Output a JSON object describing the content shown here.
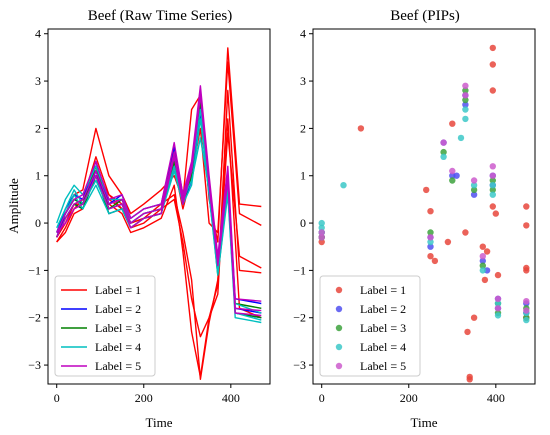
{
  "chart_data": [
    {
      "type": "line",
      "title": "Beef (Raw Time Series)",
      "xlabel": "Time",
      "ylabel": "Amplitude",
      "xlim": [
        -20,
        490
      ],
      "ylim": [
        -3.4,
        4.1
      ],
      "xticks": [
        0,
        200,
        400
      ],
      "yticks": [
        -3,
        -2,
        -1,
        0,
        1,
        2,
        3,
        4
      ],
      "grid": false,
      "legend_position": "lower-left",
      "series": [
        {
          "name": "Label = 1",
          "color": "#ff0000",
          "x": [
            0,
            20,
            40,
            60,
            90,
            120,
            150,
            170,
            200,
            240,
            270,
            290,
            310,
            330,
            350,
            370,
            393,
            420,
            470
          ],
          "curves": [
            [
              -0.3,
              0.2,
              0.6,
              0.7,
              2.0,
              1.0,
              0.6,
              0.2,
              0.4,
              0.7,
              1.0,
              0.5,
              2.4,
              2.7,
              0.5,
              -0.4,
              3.7,
              0.4,
              0.35
            ],
            [
              -0.4,
              -0.1,
              0.3,
              0.5,
              1.4,
              0.6,
              0.4,
              0.0,
              0.1,
              0.4,
              0.6,
              -0.2,
              -1.2,
              -3.3,
              -2.1,
              -1.2,
              1.9,
              -0.7,
              -0.95
            ],
            [
              -0.3,
              0.0,
              0.4,
              0.4,
              1.2,
              0.5,
              0.3,
              -0.1,
              0.0,
              0.3,
              0.5,
              -0.4,
              -1.6,
              -2.4,
              -2.0,
              -1.3,
              2.8,
              -1.0,
              -1.05
            ],
            [
              -0.4,
              -0.2,
              0.2,
              0.3,
              1.0,
              0.4,
              0.2,
              -0.2,
              -0.1,
              0.1,
              0.8,
              -0.6,
              -2.3,
              -3.25,
              -2.0,
              -1.5,
              2.2,
              -1.8,
              -2.0
            ],
            [
              -0.3,
              0.0,
              0.3,
              0.4,
              1.1,
              0.6,
              0.3,
              0.0,
              0.1,
              0.2,
              1.2,
              0.3,
              1.0,
              2.0,
              0.0,
              -0.2,
              3.4,
              0.2,
              -0.05
            ]
          ]
        },
        {
          "name": "Label = 2",
          "color": "#0000ff",
          "x": [
            0,
            20,
            40,
            60,
            90,
            120,
            150,
            170,
            200,
            240,
            270,
            290,
            310,
            330,
            350,
            370,
            393,
            410,
            470
          ],
          "curves": [
            [
              -0.2,
              0.3,
              0.6,
              0.5,
              1.3,
              0.4,
              0.6,
              0.1,
              0.3,
              0.4,
              1.6,
              0.6,
              1.2,
              2.7,
              0.9,
              -0.8,
              1.0,
              -1.6,
              -1.7
            ],
            [
              -0.3,
              0.2,
              0.5,
              0.4,
              1.1,
              0.3,
              0.4,
              0.0,
              0.2,
              0.3,
              1.4,
              0.5,
              1.0,
              2.5,
              0.8,
              -0.9,
              0.8,
              -1.8,
              -1.9
            ],
            [
              -0.2,
              0.1,
              0.4,
              0.3,
              1.0,
              0.2,
              0.3,
              -0.1,
              0.1,
              0.2,
              1.3,
              0.4,
              0.9,
              2.3,
              0.6,
              -1.0,
              0.7,
              -1.9,
              -2.0
            ]
          ]
        },
        {
          "name": "Label = 3",
          "color": "#008000",
          "x": [
            0,
            20,
            40,
            60,
            90,
            120,
            150,
            170,
            200,
            240,
            270,
            290,
            310,
            330,
            350,
            370,
            393,
            410,
            470
          ],
          "curves": [
            [
              -0.2,
              0.2,
              0.5,
              0.4,
              1.2,
              0.3,
              0.5,
              0.0,
              0.2,
              0.3,
              1.5,
              0.5,
              1.1,
              2.8,
              0.8,
              -0.9,
              0.9,
              -1.7,
              -1.8
            ],
            [
              -0.3,
              0.1,
              0.4,
              0.3,
              1.0,
              0.2,
              0.3,
              -0.1,
              0.1,
              0.2,
              1.3,
              0.4,
              1.0,
              2.6,
              0.7,
              -1.1,
              0.7,
              -1.9,
              -2.0
            ]
          ]
        },
        {
          "name": "Label = 4",
          "color": "#00bfbf",
          "x": [
            0,
            20,
            40,
            60,
            90,
            120,
            150,
            170,
            200,
            240,
            270,
            290,
            310,
            330,
            350,
            370,
            393,
            410,
            470
          ],
          "curves": [
            [
              0.0,
              0.5,
              0.8,
              0.6,
              1.2,
              0.5,
              0.5,
              0.1,
              0.3,
              0.4,
              1.4,
              0.6,
              1.1,
              2.4,
              0.8,
              -0.8,
              1.0,
              -1.7,
              -1.9
            ],
            [
              -0.1,
              0.3,
              0.7,
              0.4,
              0.9,
              0.3,
              0.4,
              0.0,
              0.2,
              0.3,
              1.2,
              0.5,
              0.9,
              1.8,
              0.7,
              -1.0,
              0.8,
              -1.9,
              -2.05
            ],
            [
              -0.2,
              0.2,
              0.6,
              0.3,
              0.8,
              0.2,
              0.3,
              -0.1,
              0.1,
              0.2,
              1.1,
              0.4,
              0.8,
              2.2,
              0.6,
              -1.1,
              0.6,
              -2.0,
              -2.1
            ]
          ]
        },
        {
          "name": "Label = 5",
          "color": "#bf00bf",
          "x": [
            0,
            20,
            40,
            60,
            90,
            120,
            150,
            170,
            200,
            240,
            270,
            290,
            310,
            330,
            350,
            370,
            393,
            410,
            470
          ],
          "curves": [
            [
              -0.2,
              0.2,
              0.5,
              0.6,
              1.3,
              0.5,
              0.6,
              0.1,
              0.3,
              0.4,
              1.7,
              0.6,
              1.3,
              2.9,
              1.0,
              -0.7,
              1.2,
              -1.6,
              -1.65
            ],
            [
              -0.3,
              0.1,
              0.4,
              0.5,
              1.1,
              0.4,
              0.5,
              0.0,
              0.2,
              0.3,
              1.5,
              0.5,
              1.2,
              2.8,
              0.9,
              -0.8,
              1.0,
              -1.8,
              -1.85
            ],
            [
              -0.2,
              0.0,
              0.3,
              0.4,
              1.0,
              0.3,
              0.4,
              -0.1,
              0.1,
              0.2,
              1.4,
              0.4,
              1.1,
              2.7,
              0.8,
              -0.9,
              0.9,
              -1.9,
              -1.95
            ]
          ]
        }
      ]
    },
    {
      "type": "scatter",
      "title": "Beef (PIPs)",
      "xlabel": "Time",
      "ylabel": "",
      "xlim": [
        -20,
        490
      ],
      "ylim": [
        -3.4,
        4.1
      ],
      "xticks": [
        0,
        200,
        400
      ],
      "yticks": [
        -3,
        -2,
        -1,
        0,
        1,
        2,
        3,
        4
      ],
      "grid": false,
      "legend_position": "lower-left",
      "series": [
        {
          "name": "Label = 1",
          "color": "#e8463c",
          "points": [
            [
              0,
              -0.3
            ],
            [
              0,
              -0.4
            ],
            [
              90,
              2.0
            ],
            [
              240,
              0.7
            ],
            [
              250,
              0.25
            ],
            [
              250,
              -0.7
            ],
            [
              260,
              -0.8
            ],
            [
              290,
              -0.4
            ],
            [
              300,
              2.1
            ],
            [
              330,
              -0.2
            ],
            [
              335,
              -2.3
            ],
            [
              340,
              -3.25
            ],
            [
              340,
              -3.3
            ],
            [
              350,
              -2.0
            ],
            [
              370,
              -0.5
            ],
            [
              375,
              -1.2
            ],
            [
              380,
              -0.6
            ],
            [
              393,
              3.7
            ],
            [
              393,
              3.35
            ],
            [
              393,
              2.8
            ],
            [
              393,
              0.35
            ],
            [
              400,
              0.2
            ],
            [
              405,
              -1.1
            ],
            [
              470,
              0.35
            ],
            [
              470,
              -0.05
            ],
            [
              470,
              -0.95
            ],
            [
              470,
              -1.0
            ],
            [
              470,
              -2.0
            ]
          ]
        },
        {
          "name": "Label = 2",
          "color": "#5050f0",
          "points": [
            [
              0,
              -0.2
            ],
            [
              0,
              -0.3
            ],
            [
              250,
              -0.3
            ],
            [
              250,
              -0.5
            ],
            [
              280,
              1.7
            ],
            [
              300,
              1.0
            ],
            [
              310,
              1.0
            ],
            [
              330,
              2.7
            ],
            [
              330,
              2.5
            ],
            [
              350,
              0.6
            ],
            [
              370,
              -0.8
            ],
            [
              380,
              -1.0
            ],
            [
              393,
              1.0
            ],
            [
              393,
              0.8
            ],
            [
              405,
              -1.6
            ],
            [
              405,
              -1.8
            ],
            [
              470,
              -1.7
            ],
            [
              470,
              -1.9
            ]
          ]
        },
        {
          "name": "Label = 3",
          "color": "#3da23d",
          "points": [
            [
              0,
              -0.2
            ],
            [
              0,
              -0.3
            ],
            [
              250,
              -0.2
            ],
            [
              280,
              1.5
            ],
            [
              300,
              0.9
            ],
            [
              330,
              2.8
            ],
            [
              330,
              2.6
            ],
            [
              350,
              0.7
            ],
            [
              370,
              -0.9
            ],
            [
              393,
              0.9
            ],
            [
              393,
              0.7
            ],
            [
              405,
              -1.7
            ],
            [
              405,
              -1.9
            ],
            [
              470,
              -1.8
            ],
            [
              470,
              -2.0
            ]
          ]
        },
        {
          "name": "Label = 4",
          "color": "#3cc8c8",
          "points": [
            [
              0,
              0.0
            ],
            [
              0,
              -0.1
            ],
            [
              0,
              -0.2
            ],
            [
              50,
              0.8
            ],
            [
              250,
              -0.4
            ],
            [
              280,
              1.4
            ],
            [
              320,
              1.8
            ],
            [
              330,
              2.4
            ],
            [
              330,
              2.2
            ],
            [
              350,
              0.8
            ],
            [
              370,
              -1.0
            ],
            [
              393,
              0.8
            ],
            [
              393,
              0.6
            ],
            [
              405,
              -1.7
            ],
            [
              405,
              -1.95
            ],
            [
              470,
              -1.9
            ],
            [
              470,
              -2.05
            ]
          ]
        },
        {
          "name": "Label = 5",
          "color": "#cc5ccc",
          "points": [
            [
              0,
              -0.2
            ],
            [
              0,
              -0.3
            ],
            [
              250,
              -0.3
            ],
            [
              280,
              1.7
            ],
            [
              300,
              1.1
            ],
            [
              330,
              2.9
            ],
            [
              330,
              2.7
            ],
            [
              350,
              0.9
            ],
            [
              370,
              -0.7
            ],
            [
              393,
              1.2
            ],
            [
              393,
              1.0
            ],
            [
              405,
              -1.6
            ],
            [
              405,
              -1.8
            ],
            [
              470,
              -1.65
            ],
            [
              470,
              -1.85
            ]
          ]
        }
      ]
    }
  ]
}
